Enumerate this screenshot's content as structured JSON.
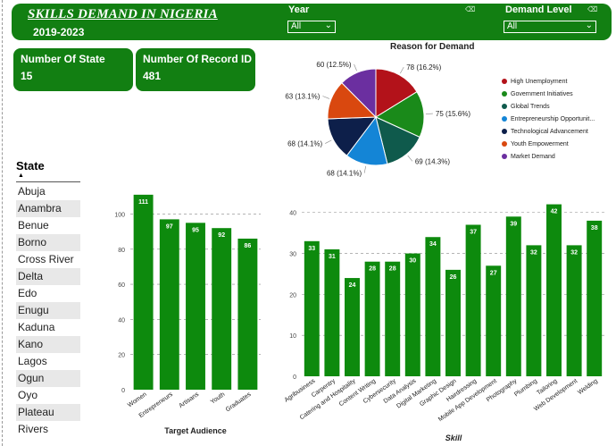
{
  "header": {
    "title": "SKILLS DEMAND IN NIGERIA",
    "subtitle": "2019-2023",
    "year_filter": {
      "label": "Year",
      "value": "All"
    },
    "demand_filter": {
      "label": "Demand Level",
      "value": "All"
    }
  },
  "cards": [
    {
      "label": "Number Of State",
      "value": "15"
    },
    {
      "label": "Number Of Record ID",
      "value": "481"
    }
  ],
  "slicer": {
    "title": "State",
    "items": [
      "Abuja",
      "Anambra",
      "Benue",
      "Borno",
      "Cross River",
      "Delta",
      "Edo",
      "Enugu",
      "Kaduna",
      "Kano",
      "Lagos",
      "Ogun",
      "Oyo",
      "Plateau",
      "Rivers"
    ]
  },
  "colors": {
    "bar": "#0d8a0d",
    "header": "#127f12"
  },
  "chart_data": [
    {
      "type": "pie",
      "title": "Reason for Demand",
      "categories": [
        "High Unemployment",
        "Government Initiatives",
        "Global Trends",
        "Entrepreneurship Opportunit...",
        "Technological Advancement",
        "Youth Empowerment",
        "Market Demand"
      ],
      "values": [
        78,
        75,
        69,
        68,
        68,
        63,
        60
      ],
      "data_labels": [
        "78 (16.2%)",
        "75 (15.6%)",
        "69 (14.3%)",
        "68 (14.1%)",
        "68 (14.1%)",
        "63 (13.1%)",
        "60 (12.5%)"
      ],
      "colors": [
        "#b3121a",
        "#1a8a1a",
        "#0f5a4c",
        "#1485d6",
        "#0d1f4a",
        "#d9480f",
        "#6b2fa0"
      ],
      "legend": "right"
    },
    {
      "type": "bar",
      "title": "",
      "xlabel": "Target Audience",
      "ylabel": "",
      "categories": [
        "Women",
        "Entrepreneurs",
        "Artisans",
        "Youth",
        "Graduates"
      ],
      "values": [
        111,
        97,
        95,
        92,
        86
      ],
      "ylim": [
        0,
        115
      ],
      "yticks": [
        0,
        20,
        40,
        60,
        80,
        100
      ],
      "grid": true
    },
    {
      "type": "bar",
      "title": "",
      "xlabel": "Skill",
      "ylabel": "",
      "categories": [
        "Agribusiness",
        "Carpentry",
        "Catering and Hospitality",
        "Content Writing",
        "Cybersecurity",
        "Data Analysis",
        "Digital Marketing",
        "Graphic Design",
        "Hairdressing",
        "Mobile App Development",
        "Photography",
        "Plumbing",
        "Tailoring",
        "Web Development",
        "Welding"
      ],
      "values": [
        33,
        31,
        24,
        28,
        28,
        30,
        34,
        26,
        37,
        27,
        39,
        32,
        42,
        32,
        38
      ],
      "ylim": [
        0,
        43
      ],
      "yticks": [
        0,
        10,
        20,
        30,
        40
      ],
      "grid": true
    }
  ]
}
